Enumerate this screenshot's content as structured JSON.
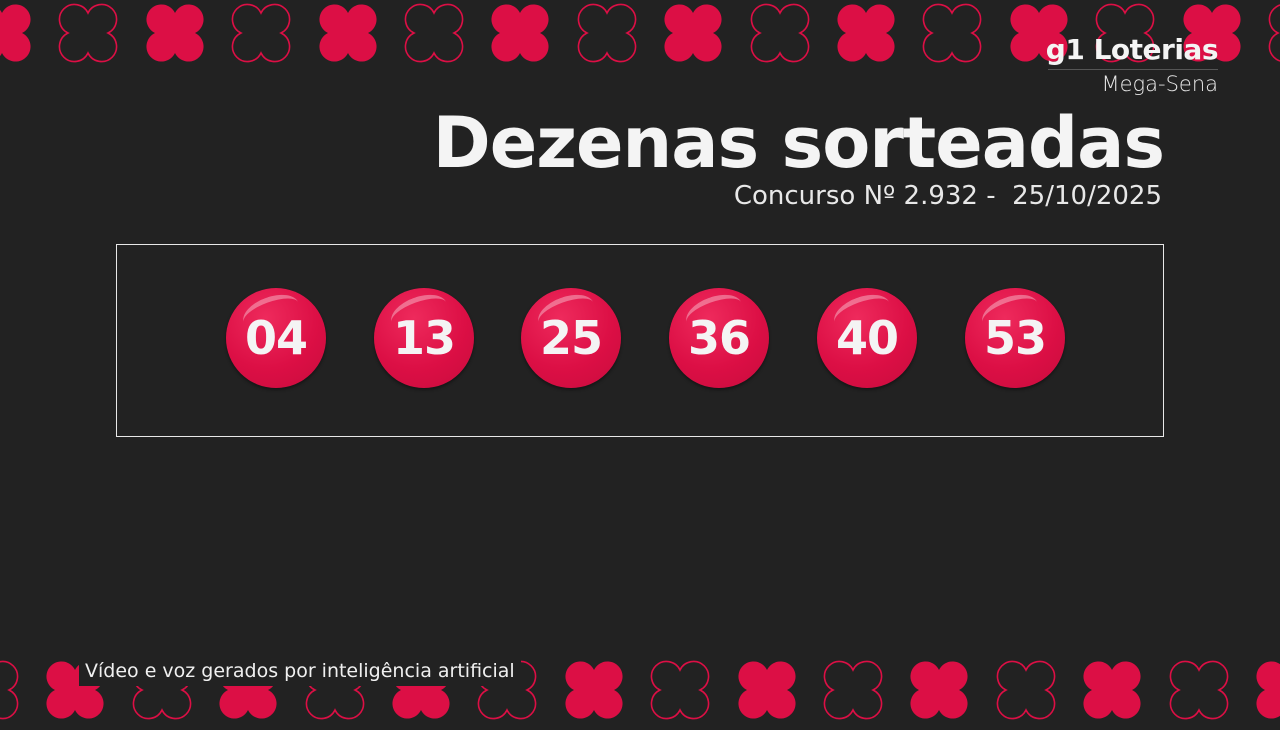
{
  "brand": {
    "logo": "g1 Loterias",
    "game": "Mega-Sena"
  },
  "header": {
    "title": "Dezenas sorteadas",
    "draw_info": "Concurso Nº 2.932 -  25/10/2025"
  },
  "numbers": [
    "04",
    "13",
    "25",
    "36",
    "40",
    "53"
  ],
  "caption": "Vídeo e voz gerados por inteligência artificial",
  "colors": {
    "background": "#222222",
    "accent": "#dc0f45",
    "text": "#f4f4f4"
  },
  "decor": {
    "icon": "four-leaf-clover-icon"
  }
}
